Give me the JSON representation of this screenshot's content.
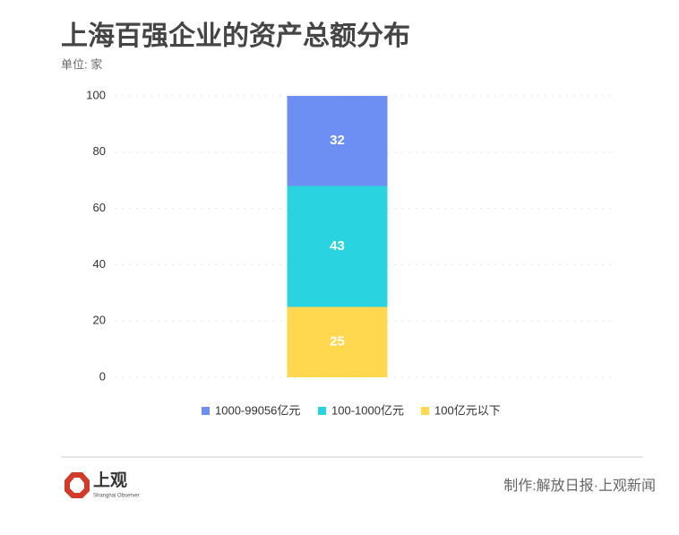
{
  "chart_data": {
    "type": "stacked_bar",
    "title": "上海百强企业的资产总额分布",
    "subtitle": "单位: 家",
    "categories": [
      null
    ],
    "series": [
      {
        "name": "1000-99056亿元",
        "color": "#6d8ef3",
        "values": [
          32
        ]
      },
      {
        "name": "100-1000亿元",
        "color": "#29d4e0",
        "values": [
          43
        ]
      },
      {
        "name": "100亿元以下",
        "color": "#ffd84f",
        "values": [
          25
        ]
      }
    ],
    "ylim": [
      0,
      100
    ],
    "yticks": [
      0,
      20,
      40,
      60,
      80,
      100
    ],
    "grid": true,
    "legend": "bottom"
  },
  "footer": {
    "logo": "上观",
    "logo_sub": "Shanghai Observer",
    "credit": "制作:解放日报·上观新闻"
  }
}
